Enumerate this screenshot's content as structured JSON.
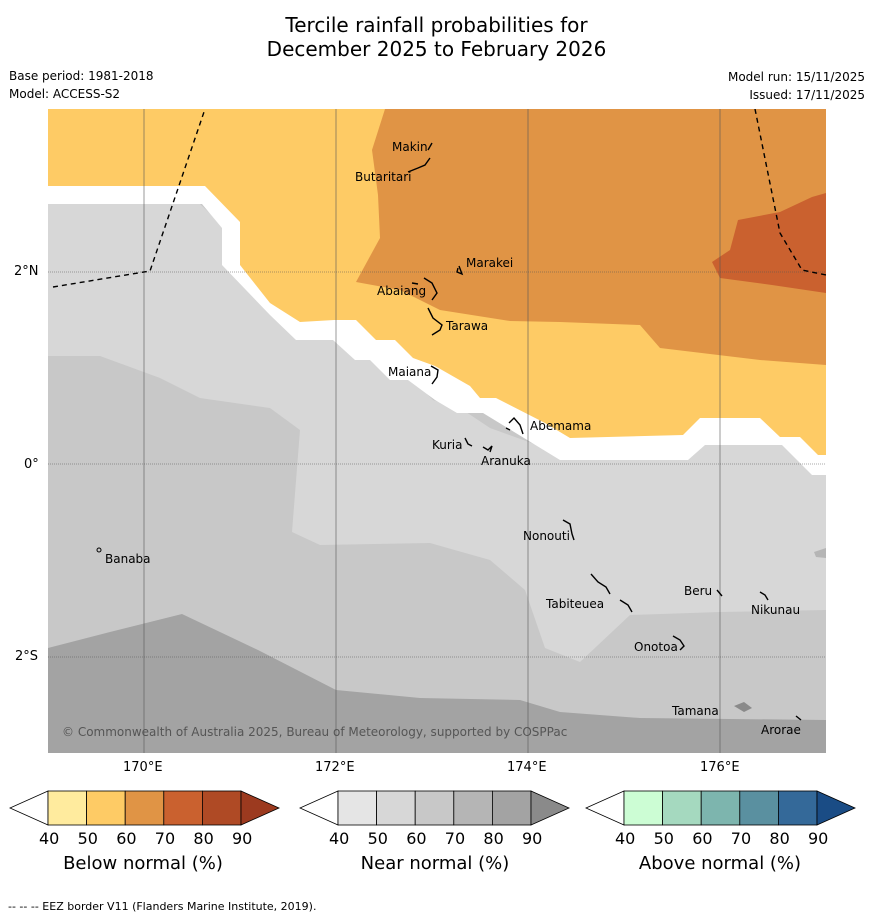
{
  "title": {
    "line1": "Tercile rainfall probabilities for",
    "line2": "December 2025 to February 2026"
  },
  "meta": {
    "base_period": "Base period: 1981-2018",
    "model": "Model: ACCESS-S2",
    "model_run": "Model run: 15/11/2025",
    "issued": "Issued: 17/11/2025"
  },
  "map": {
    "lat_labels": [
      "2°N",
      "0°",
      "2°S"
    ],
    "lon_labels": [
      "170°E",
      "172°E",
      "174°E",
      "176°E"
    ],
    "places": [
      "Makin",
      "Butaritari",
      "Marakei",
      "Abaiang",
      "Tarawa",
      "Maiana",
      "Abemama",
      "Kuria",
      "Aranuka",
      "Nonouti",
      "Banaba",
      "Beru",
      "Tabiteuea",
      "Nikunau",
      "Onotoa",
      "Tamana",
      "Arorae"
    ],
    "copyright": "© Commonwealth of Australia 2025, Bureau of Meteorology, supported by COSPPac"
  },
  "colorbars": [
    {
      "label": "Below normal (%)",
      "ticks": [
        "40",
        "50",
        "60",
        "70",
        "80",
        "90"
      ],
      "colors": [
        "#ffffff",
        "#ffeb9e",
        "#fecb65",
        "#e09445",
        "#ca612f",
        "#af4a25",
        "#9c3a1f"
      ]
    },
    {
      "label": "Near normal (%)",
      "ticks": [
        "40",
        "50",
        "60",
        "70",
        "80",
        "90"
      ],
      "colors": [
        "#ffffff",
        "#e5e5e5",
        "#d7d7d7",
        "#c8c8c8",
        "#b5b5b5",
        "#a3a3a3",
        "#8a8a8a"
      ]
    },
    {
      "label": "Above normal (%)",
      "ticks": [
        "40",
        "50",
        "60",
        "70",
        "80",
        "90"
      ],
      "colors": [
        "#ffffff",
        "#ccfdd4",
        "#a5d9bf",
        "#7db5ae",
        "#5a90a0",
        "#346999",
        "#1a4c85"
      ]
    }
  ],
  "footer": "--  --  -- EEZ border V11 (Flanders Marine Institute, 2019)."
}
